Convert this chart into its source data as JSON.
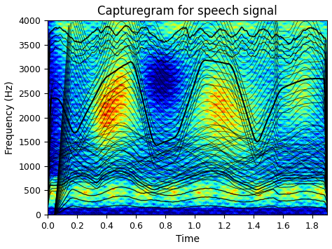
{
  "title": "Capturegram for speech signal",
  "xlabel": "Time",
  "ylabel": "Frequency (Hz)",
  "xlim": [
    0,
    1.9
  ],
  "ylim": [
    0,
    4000
  ],
  "xticks": [
    0,
    0.2,
    0.4,
    0.6,
    0.8,
    1.0,
    1.2,
    1.4,
    1.6,
    1.8
  ],
  "yticks": [
    0,
    500,
    1000,
    1500,
    2000,
    2500,
    3000,
    3500,
    4000
  ],
  "title_fontsize": 12,
  "label_fontsize": 10,
  "tick_fontsize": 9,
  "figsize": [
    4.74,
    3.55
  ],
  "dpi": 100
}
